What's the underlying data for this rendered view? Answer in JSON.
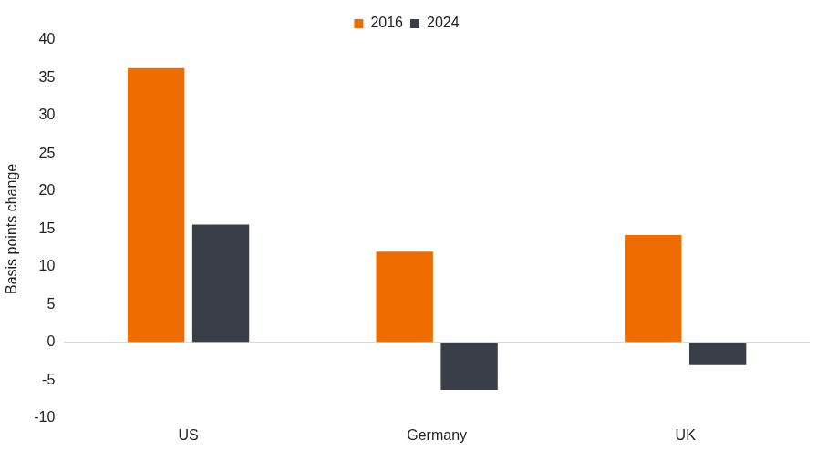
{
  "chart_data": {
    "type": "bar",
    "y_label": "Basis points change",
    "categories": [
      "US",
      "Germany",
      "UK"
    ],
    "series": [
      {
        "name": "2016",
        "color": "#ee6c00",
        "values": [
          36.3,
          12.0,
          14.2
        ]
      },
      {
        "name": "2024",
        "color": "#3a3e48",
        "values": [
          15.6,
          -6.3,
          -3.0
        ]
      }
    ],
    "ylim": [
      -10,
      40
    ],
    "yticks": [
      -10,
      -5,
      0,
      5,
      10,
      15,
      20,
      25,
      30,
      35,
      40
    ],
    "grid": false,
    "legend": "top"
  }
}
